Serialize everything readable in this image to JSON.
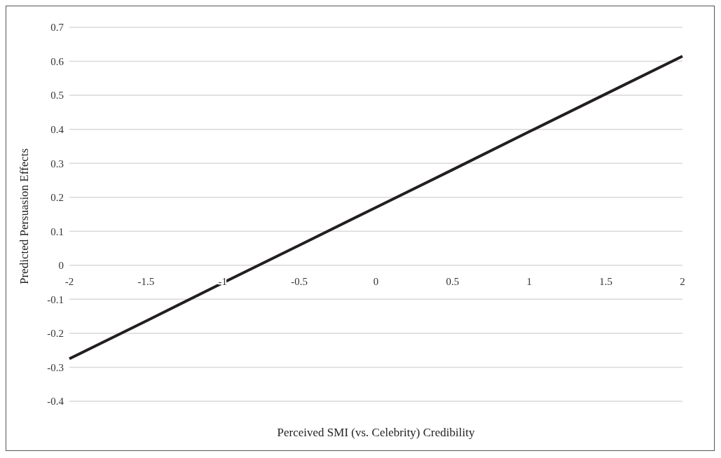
{
  "chart_data": {
    "type": "line",
    "xlabel": "Perceived SMI (vs. Celebrity) Credibility",
    "ylabel": "Predicted Persuasion Effects",
    "categories": [
      "-2",
      "-1.5",
      "-1",
      "-0.5",
      "0",
      "0.5",
      "1",
      "1.5",
      "2"
    ],
    "series": [
      {
        "color": "#231f20",
        "values": [
          -0.275,
          -0.164,
          -0.052,
          0.059,
          0.17,
          0.281,
          0.393,
          0.504,
          0.615
        ]
      }
    ],
    "ylim": [
      -0.4,
      0.7
    ],
    "yticks": [
      -0.4,
      -0.3,
      -0.2,
      -0.1,
      0,
      0.1,
      0.2,
      0.3,
      0.4,
      0.5,
      0.6,
      0.7
    ],
    "grid": "y",
    "marker": "none",
    "line_style": "solid"
  }
}
